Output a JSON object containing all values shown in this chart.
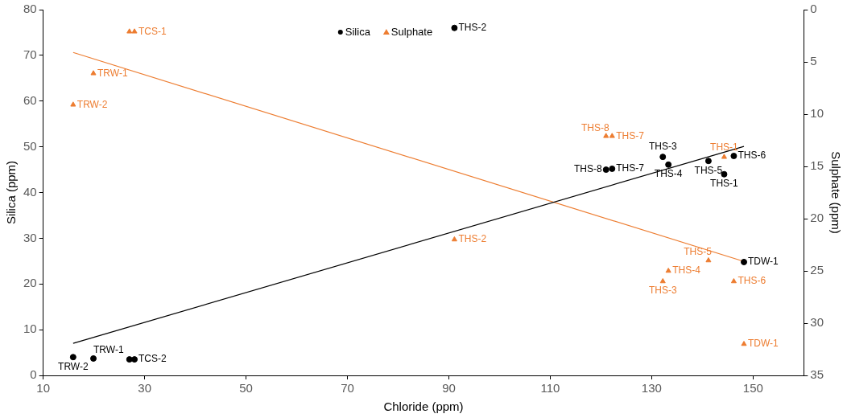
{
  "chart_data": {
    "type": "scatter",
    "xlabel": "Chloride (ppm)",
    "ylabel": "Silica (ppm)",
    "y2label": "Sulphate (ppm)",
    "xlim": [
      10,
      160
    ],
    "xticks": [
      10,
      30,
      50,
      70,
      90,
      110,
      130,
      150
    ],
    "ylim": [
      0,
      80
    ],
    "yticks": [
      0,
      10,
      20,
      30,
      40,
      50,
      60,
      70,
      80
    ],
    "y2lim": [
      35,
      0
    ],
    "y2ticks": [
      0,
      5,
      10,
      15,
      20,
      25,
      30,
      35
    ],
    "grid": false,
    "legend": "top",
    "series": [
      {
        "name": "Silica",
        "marker": "circle",
        "color": "#000000",
        "x": [
          15.9,
          19.9,
          27.0,
          28.0,
          91.1,
          132.2,
          133.3,
          121.0,
          122.2,
          141.2,
          144.3,
          146.2,
          148.2
        ],
        "values": [
          4.0,
          3.7,
          3.5,
          3.5,
          76.0,
          47.8,
          46.1,
          45.0,
          45.2,
          46.9,
          44.0,
          48.0,
          24.8
        ],
        "value_labels": [
          "TRW-2",
          "TRW-1",
          null,
          "TCS-2",
          "THS-2",
          "THS-3",
          "THS-4",
          "THS-8",
          "THS-7",
          "THS-5",
          "THS-1",
          "THS-6",
          "TDW-1"
        ]
      },
      {
        "name": "Sulphate",
        "axis": "y2",
        "marker": "triangle",
        "color": "#ed7d31",
        "x": [
          27.0,
          28.0,
          19.9,
          15.9,
          121.0,
          122.2,
          144.3,
          91.1,
          141.2,
          133.3,
          132.2,
          146.2,
          148.2
        ],
        "values": [
          2.1,
          2.1,
          6.1,
          9.1,
          12.1,
          12.1,
          14.1,
          22.0,
          24.0,
          25.0,
          26.0,
          26.0,
          32.0
        ],
        "value_labels": [
          null,
          "TCS-1",
          "TRW-1",
          "TRW-2",
          "THS-8",
          "THS-7",
          "THS-1",
          "THS-2",
          "THS-5",
          "THS-4",
          "THS-3",
          "THS-6",
          "TDW-1"
        ]
      },
      {
        "type": "line",
        "color": "#000000",
        "x": [
          15.9,
          148.2
        ],
        "values": [
          7.0,
          50.1
        ]
      },
      {
        "type": "line",
        "axis": "y2",
        "color": "#ed7d31",
        "x": [
          15.9,
          148.2
        ],
        "values": [
          4.1,
          24.1
        ]
      }
    ]
  }
}
